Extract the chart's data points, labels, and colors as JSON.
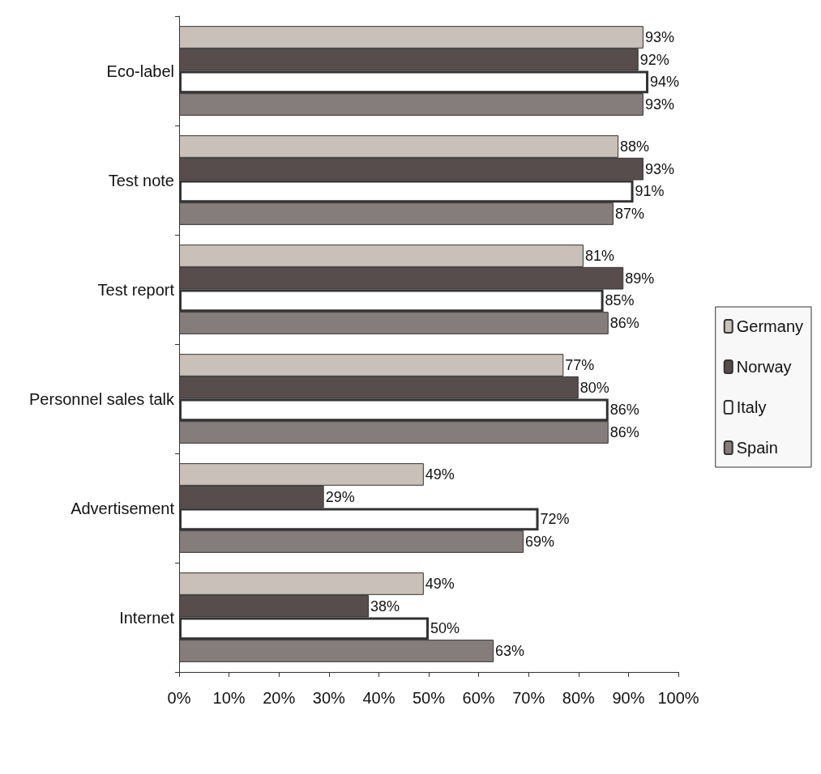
{
  "chart_data": {
    "type": "bar",
    "orientation": "horizontal",
    "categories": [
      "Eco-label",
      "Test note",
      "Test report",
      "Personnel sales talk",
      "Advertisement",
      "Internet"
    ],
    "series": [
      {
        "name": "Germany",
        "color": "#c9c1b9",
        "values": [
          93,
          88,
          81,
          77,
          49,
          49
        ],
        "value_labels": [
          "93%",
          "88%",
          "81%",
          "77%",
          "49%",
          "49%"
        ]
      },
      {
        "name": "Norway",
        "color": "#574d4d",
        "values": [
          92,
          93,
          89,
          80,
          29,
          38
        ],
        "value_labels": [
          "92%",
          "93%",
          "89%",
          "80%",
          "29%",
          "38%"
        ]
      },
      {
        "name": "Italy",
        "color": "#ffffff",
        "values": [
          94,
          91,
          85,
          86,
          72,
          50
        ],
        "value_labels": [
          "94%",
          "91%",
          "85%",
          "86%",
          "72%",
          "50%"
        ]
      },
      {
        "name": "Spain",
        "color": "#857d7b",
        "values": [
          93,
          87,
          86,
          86,
          69,
          63
        ],
        "value_labels": [
          "93%",
          "87%",
          "86%",
          "86%",
          "69%",
          "63%"
        ]
      }
    ],
    "xlim": [
      0,
      100
    ],
    "xticks": [
      {
        "value": 0,
        "label": "0%"
      },
      {
        "value": 10,
        "label": "10%"
      },
      {
        "value": 20,
        "label": "20%"
      },
      {
        "value": 30,
        "label": "30%"
      },
      {
        "value": 40,
        "label": "40%"
      },
      {
        "value": 50,
        "label": "50%"
      },
      {
        "value": 60,
        "label": "60%"
      },
      {
        "value": 70,
        "label": "70%"
      },
      {
        "value": 80,
        "label": "80%"
      },
      {
        "value": 90,
        "label": "90%"
      },
      {
        "value": 100,
        "label": "100%"
      }
    ],
    "grid": false,
    "legend": "right"
  }
}
